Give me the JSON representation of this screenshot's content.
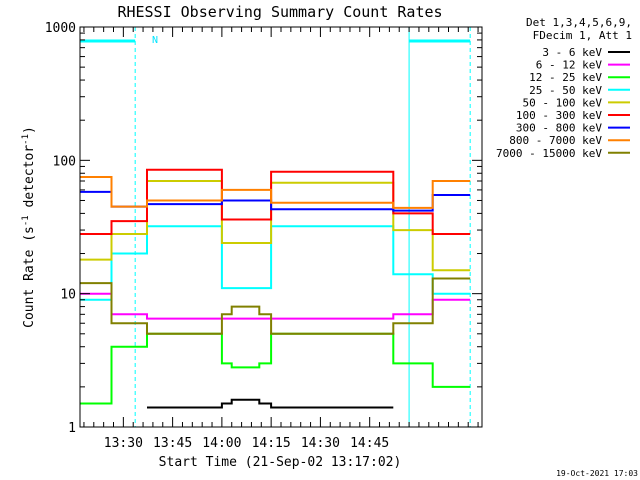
{
  "chart_data": {
    "type": "line",
    "title": "RHESSI Observing Summary Count Rates",
    "xlabel": "Start Time (21-Sep-02 13:17:02)",
    "ylabel_prefix": "Count Rate (s",
    "ylabel_sup1": "-1",
    "ylabel_mid": " detector",
    "ylabel_sup2": "-1",
    "ylabel_suffix": ")",
    "yscale": "log",
    "ylim": [
      1,
      1000
    ],
    "xlim_minutes": [
      13.28,
      15.32
    ],
    "y_ticks": [
      "1",
      "10",
      "100",
      "1000"
    ],
    "x_ticks": [
      {
        "t": 13.5,
        "label": "13:30"
      },
      {
        "t": 13.75,
        "label": "13:45"
      },
      {
        "t": 14.0,
        "label": "14:00"
      },
      {
        "t": 14.25,
        "label": "14:15"
      },
      {
        "t": 14.5,
        "label": "14:30"
      },
      {
        "t": 14.75,
        "label": "14:45"
      }
    ],
    "legend": {
      "header1": "Det 1,3,4,5,6,9,",
      "header2": "FDecim 1, Att 1",
      "placement": "right"
    },
    "flag_label": "N",
    "footer_date": "19-Oct-2021 17:03",
    "night_intervals": [
      [
        13.28,
        13.56
      ],
      [
        14.95,
        15.26
      ]
    ],
    "segments": [
      [
        13.28,
        13.44
      ],
      [
        13.44,
        13.62
      ],
      [
        13.62,
        14.0
      ],
      [
        14.0,
        14.05
      ],
      [
        14.05,
        14.19
      ],
      [
        14.19,
        14.25
      ],
      [
        14.25,
        14.87
      ],
      [
        14.87,
        15.07
      ],
      [
        15.07,
        15.26
      ]
    ],
    "series": [
      {
        "name": "3 - 6 keV",
        "color": "#000000",
        "values": [
          null,
          null,
          1.4,
          1.5,
          1.6,
          1.5,
          1.4,
          null,
          null
        ]
      },
      {
        "name": "6 - 12 keV",
        "color": "#ff00ff",
        "values": [
          10,
          7,
          6.5,
          6.5,
          6.5,
          6.5,
          6.5,
          7,
          9
        ]
      },
      {
        "name": "12 - 25 keV",
        "color": "#00ff00",
        "values": [
          1.5,
          4,
          5,
          3,
          2.8,
          3,
          5,
          3,
          2
        ]
      },
      {
        "name": "25 - 50 keV",
        "color": "#00ffff",
        "values": [
          9,
          20,
          32,
          11,
          11,
          11,
          32,
          14,
          10
        ]
      },
      {
        "name": "50 - 100 keV",
        "color": "#cccc00",
        "values": [
          18,
          28,
          70,
          24,
          24,
          24,
          68,
          30,
          15
        ]
      },
      {
        "name": "100 - 300 keV",
        "color": "#ff0000",
        "values": [
          28,
          35,
          85,
          36,
          36,
          36,
          82,
          40,
          28
        ]
      },
      {
        "name": "300 - 800 keV",
        "color": "#0000ff",
        "values": [
          58,
          45,
          47,
          50,
          50,
          50,
          43,
          42,
          55
        ]
      },
      {
        "name": "800 - 7000 keV",
        "color": "#ff8000",
        "values": [
          75,
          45,
          50,
          60,
          60,
          60,
          48,
          44,
          70
        ]
      },
      {
        "name": "7000 - 15000 keV",
        "color": "#808000",
        "values": [
          12,
          6,
          5,
          7,
          8,
          7,
          5,
          6,
          13
        ]
      }
    ]
  }
}
